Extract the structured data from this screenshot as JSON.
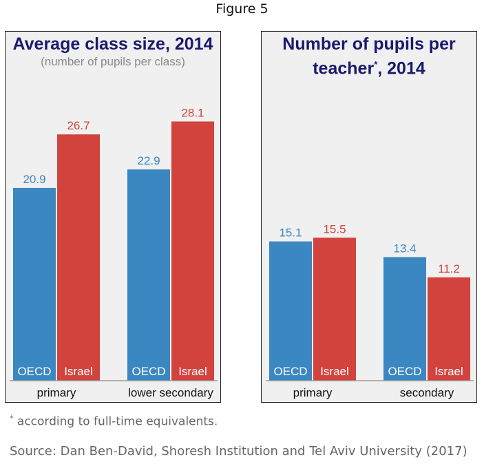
{
  "figure_title": "Figure 5",
  "footnote_marker": "*",
  "footnote_text": "according to full-time equivalents.",
  "source": "Source: Dan Ben-David, Shoresh Institution and Tel Aviv University (2017)",
  "colors": {
    "oecd": "#3b87c1",
    "israel": "#d2433d",
    "title": "#1a1a6e",
    "panel_bg": "#f0f0f0"
  },
  "chart_data": [
    {
      "type": "bar",
      "title": "Average class size, 2014",
      "subtitle": "(number of pupils per class)",
      "categories": [
        "primary",
        "lower secondary"
      ],
      "series": [
        {
          "name": "OECD",
          "values": [
            20.9,
            22.9
          ]
        },
        {
          "name": "Israel",
          "values": [
            26.7,
            28.1
          ]
        }
      ],
      "value_labels": [
        [
          "20.9",
          "22.9"
        ],
        [
          "26.7",
          "28.1"
        ]
      ],
      "ylim": [
        0,
        30
      ],
      "grid": false
    },
    {
      "type": "bar",
      "title_line1": "Number of pupils per",
      "title_line2": "teacher",
      "title_marker": "*",
      "title_line2_suffix": ", 2014",
      "categories": [
        "primary",
        "secondary"
      ],
      "series": [
        {
          "name": "OECD",
          "values": [
            15.1,
            13.4
          ]
        },
        {
          "name": "Israel",
          "values": [
            15.5,
            11.2
          ]
        }
      ],
      "value_labels": [
        [
          "15.1",
          "13.4"
        ],
        [
          "15.5",
          "11.2"
        ]
      ],
      "ylim": [
        0,
        30
      ],
      "grid": false
    }
  ]
}
